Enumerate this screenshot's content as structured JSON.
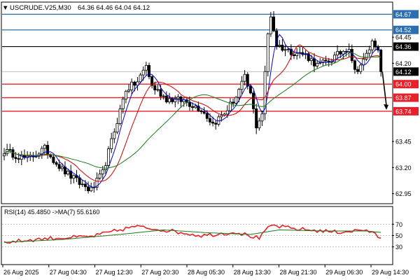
{
  "header": {
    "symbol": "USCRUDE.V25,M30",
    "ohlc": "64.36 64.46 64.04 64.12",
    "arrow_glyph": "▼"
  },
  "colors": {
    "bull": "#000000",
    "bear": "#000000",
    "ma_fast": "#0000cc",
    "ma_mid": "#cc0000",
    "ma_slow": "#1a7a1a",
    "level_red": "#e8202a",
    "level_blue": "#2b6fb0",
    "level_black": "#000000",
    "rsi": "#e8202a",
    "rsi_ma": "#1a7a1a",
    "arrow": "#000000"
  },
  "chart_data": [
    {
      "type": "candlestick",
      "title": "USCRUDE.V25,M30",
      "ylim": [
        62.86,
        64.78
      ],
      "y_ticks": [
        62.95,
        63.2,
        63.45,
        63.7,
        63.95,
        64.2,
        64.45,
        64.67
      ],
      "x_tick_labels": [
        "26 Aug 2025",
        "27 Aug 04:30",
        "27 Aug 12:30",
        "27 Aug 20:30",
        "28 Aug 05:30",
        "28 Aug 13:30",
        "28 Aug 21:30",
        "29 Aug 06:30",
        "29 Aug 14:30"
      ],
      "price_anchors": [
        [
          0,
          63.36
        ],
        [
          8,
          63.28
        ],
        [
          14,
          63.38
        ],
        [
          20,
          63.18
        ],
        [
          26,
          63.05
        ],
        [
          30,
          62.98
        ],
        [
          34,
          63.15
        ],
        [
          38,
          63.55
        ],
        [
          42,
          63.95
        ],
        [
          46,
          64.02
        ],
        [
          49,
          64.18
        ],
        [
          51,
          63.98
        ],
        [
          56,
          63.86
        ],
        [
          62,
          63.84
        ],
        [
          68,
          63.76
        ],
        [
          72,
          63.62
        ],
        [
          76,
          63.72
        ],
        [
          80,
          63.88
        ],
        [
          83,
          64.06
        ],
        [
          85,
          63.9
        ],
        [
          87,
          63.6
        ],
        [
          89,
          63.72
        ],
        [
          91,
          64.48
        ],
        [
          92,
          64.66
        ],
        [
          94,
          64.38
        ],
        [
          98,
          64.32
        ],
        [
          104,
          64.28
        ],
        [
          108,
          64.18
        ],
        [
          112,
          64.22
        ],
        [
          116,
          64.3
        ],
        [
          119,
          64.36
        ],
        [
          121,
          64.12
        ],
        [
          124,
          64.22
        ],
        [
          127,
          64.4
        ],
        [
          129,
          64.36
        ],
        [
          130,
          64.12
        ]
      ],
      "series": [
        {
          "name": "MA fast",
          "role": "ma_fast",
          "period": 5
        },
        {
          "name": "MA mid",
          "role": "ma_mid",
          "period": 12
        },
        {
          "name": "MA slow",
          "role": "ma_slow",
          "period": 30
        }
      ],
      "levels": [
        {
          "value": 64.67,
          "label": "64.67",
          "style": "blue"
        },
        {
          "value": 64.52,
          "label": "64.52",
          "style": "blue"
        },
        {
          "value": 64.36,
          "label": "64.36",
          "style": "black"
        },
        {
          "value": 64.12,
          "label": "64.12",
          "style": "current"
        },
        {
          "value": 64.0,
          "label": "64.00",
          "style": "red"
        },
        {
          "value": 63.87,
          "label": "63.87",
          "style": "red"
        },
        {
          "value": 63.74,
          "label": "63.74",
          "style": "red"
        }
      ],
      "projection_arrow": {
        "from": 64.12,
        "to": 63.74
      }
    },
    {
      "type": "line",
      "title": "RSI(14) 45.4850 ->MA(7) 55.6160",
      "ylim": [
        0,
        100
      ],
      "y_ticks": [
        70,
        50,
        30
      ],
      "series": [
        {
          "name": "RSI(14)",
          "role": "rsi",
          "anchors": [
            [
              0,
              38
            ],
            [
              15,
              45
            ],
            [
              30,
              48
            ],
            [
              45,
              66
            ],
            [
              55,
              60
            ],
            [
              68,
              50
            ],
            [
              80,
              56
            ],
            [
              88,
              45
            ],
            [
              92,
              68
            ],
            [
              100,
              62
            ],
            [
              115,
              56
            ],
            [
              125,
              60
            ],
            [
              130,
              45.485
            ]
          ]
        },
        {
          "name": "MA(7)",
          "role": "rsi_ma",
          "anchors": [
            [
              0,
              38
            ],
            [
              20,
              43
            ],
            [
              40,
              52
            ],
            [
              55,
              60
            ],
            [
              70,
              55
            ],
            [
              85,
              52
            ],
            [
              95,
              60
            ],
            [
              110,
              58
            ],
            [
              125,
              58
            ],
            [
              130,
              55.616
            ]
          ]
        }
      ]
    }
  ]
}
